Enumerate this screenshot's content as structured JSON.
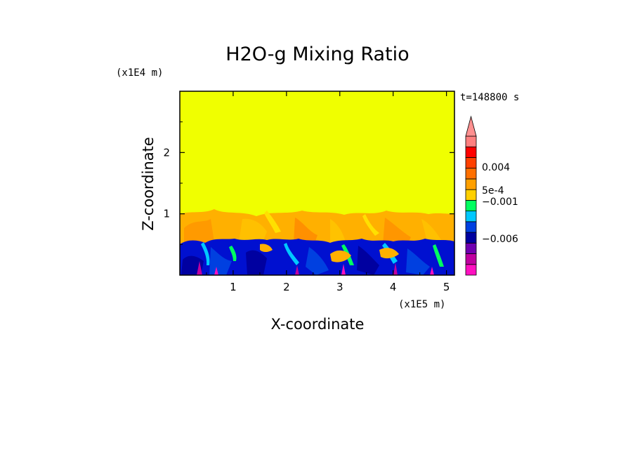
{
  "chart_data": {
    "type": "heatmap",
    "title": "H2O-g Mixing Ratio",
    "xlabel": "X-coordinate",
    "ylabel": "Z-coordinate",
    "x_scale_label": "(x1E5 m)",
    "y_scale_label": "(x1E4 m)",
    "time_label": "t=148800 s",
    "xlim": [
      0,
      5.15
    ],
    "ylim": [
      0,
      3.0
    ],
    "x_ticks": [
      "1",
      "2",
      "3",
      "4",
      "5"
    ],
    "x_tick_values": [
      1,
      2,
      3,
      4,
      5
    ],
    "y_ticks": [
      "1",
      "2"
    ],
    "y_tick_values": [
      1,
      2
    ],
    "regions": [
      {
        "name": "upper",
        "z_range": [
          1.0,
          3.0
        ],
        "color": "#f0ff00"
      },
      {
        "name": "transition",
        "z_range": [
          0.6,
          1.0
        ],
        "color": "#ffb000"
      },
      {
        "name": "lower",
        "z_range": [
          0.0,
          0.6
        ],
        "color": "#0010d0"
      }
    ],
    "colorbar": {
      "colors": [
        "#ff10c0",
        "#c000a0",
        "#7000b0",
        "#0000a0",
        "#0040e0",
        "#00c8ff",
        "#00ff60",
        "#ffd000",
        "#ffa000",
        "#ff7000",
        "#ff4000",
        "#ff0000",
        "#ff8080"
      ],
      "extend_color": "#ff9090",
      "labels": [
        "0.004",
        "5e-4",
        "−0.001",
        "−0.006"
      ]
    }
  }
}
